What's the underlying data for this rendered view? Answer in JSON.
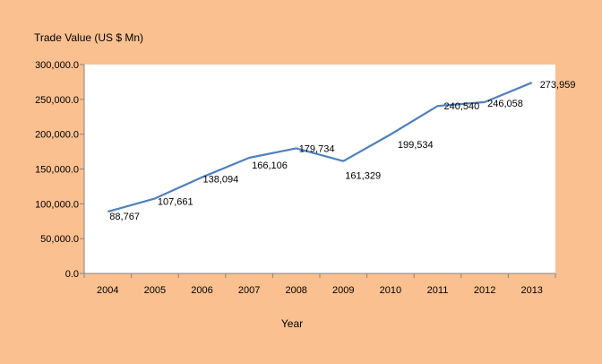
{
  "colors": {
    "page_background": "#FAC090",
    "plot_background": "#FFFFFF",
    "series_line": "#4F81BD",
    "axis_line": "#868686"
  },
  "chart_data": {
    "type": "line",
    "title": "",
    "ylabel": "Trade Value (US $ Mn)",
    "xlabel": "Year",
    "categories": [
      "2004",
      "2005",
      "2006",
      "2007",
      "2008",
      "2009",
      "2010",
      "2011",
      "2012",
      "2013"
    ],
    "series": [
      {
        "values": [
          88767,
          107661,
          138094,
          166106,
          179734,
          161329,
          199534,
          240540,
          246058,
          273959
        ],
        "data_labels": [
          "88,767",
          "107,661",
          "138,094",
          "166,106",
          "179,734",
          "161,329",
          "199,534",
          "240,540",
          "246,058",
          "273,959"
        ]
      }
    ],
    "ylim": [
      0,
      300000
    ],
    "yticks": [
      0,
      50000,
      100000,
      150000,
      200000,
      250000,
      300000
    ],
    "ytick_labels": [
      "0.0",
      "50,000.0",
      "100,000.0",
      "150,000.0",
      "200,000.0",
      "250,000.0",
      "300,000.0"
    ],
    "grid": false,
    "legend": "none"
  }
}
